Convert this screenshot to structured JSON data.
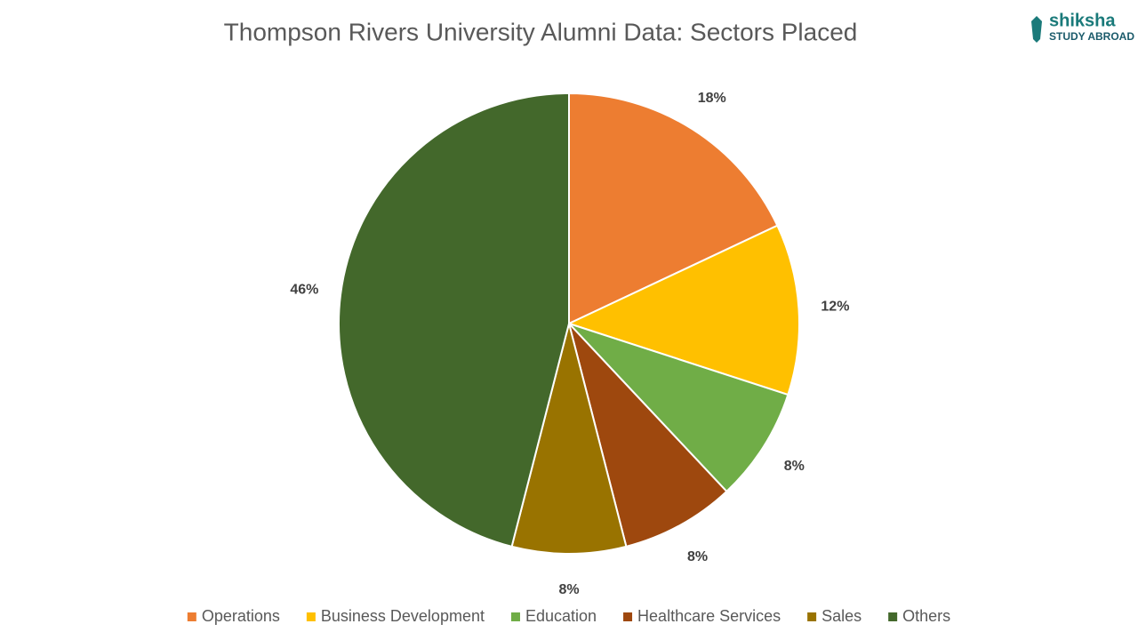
{
  "chart_data": {
    "type": "pie",
    "title": "Thompson Rivers University Alumni Data: Sectors Placed",
    "categories": [
      "Operations",
      "Business Development",
      "Education",
      "Healthcare Services",
      "Sales",
      "Others"
    ],
    "values": [
      18,
      12,
      8,
      8,
      8,
      46
    ],
    "value_labels": [
      "18%",
      "12%",
      "8%",
      "8%",
      "8%",
      "46%"
    ],
    "colors": [
      "#ed7d31",
      "#ffc000",
      "#70ad47",
      "#9e480e",
      "#997300",
      "#43682b"
    ],
    "legend": "bottom"
  },
  "logo": {
    "name": "shiksha",
    "tagline": "STUDY ABROAD"
  }
}
